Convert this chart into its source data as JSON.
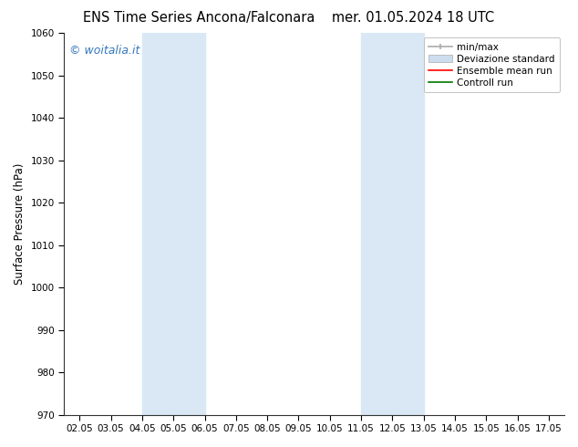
{
  "title_left": "ENS Time Series Ancona/Falconara",
  "title_right": "mer. 01.05.2024 18 UTC",
  "ylabel": "Surface Pressure (hPa)",
  "ylim": [
    970,
    1060
  ],
  "yticks": [
    970,
    980,
    990,
    1000,
    1010,
    1020,
    1030,
    1040,
    1050,
    1060
  ],
  "xtick_labels": [
    "02.05",
    "03.05",
    "04.05",
    "05.05",
    "06.05",
    "07.05",
    "08.05",
    "09.05",
    "10.05",
    "11.05",
    "12.05",
    "13.05",
    "14.05",
    "15.05",
    "16.05",
    "17.05"
  ],
  "xtick_positions": [
    0,
    1,
    2,
    3,
    4,
    5,
    6,
    7,
    8,
    9,
    10,
    11,
    12,
    13,
    14,
    15
  ],
  "shaded_regions": [
    {
      "xstart": 2,
      "xend": 4,
      "color": "#dae8f5"
    },
    {
      "xstart": 9,
      "xend": 11,
      "color": "#dae8f5"
    }
  ],
  "background_color": "#ffffff",
  "plot_bg_color": "#ffffff",
  "watermark_text": "© woitalia.it",
  "watermark_color": "#3377bb",
  "legend_entries": [
    {
      "label": "min/max",
      "color": "#aaaaaa",
      "lw": 1.5
    },
    {
      "label": "Deviazione standard",
      "color": "#ccddee",
      "lw": 8
    },
    {
      "label": "Ensemble mean run",
      "color": "#ff0000",
      "lw": 1.5
    },
    {
      "label": "Controll run",
      "color": "#007700",
      "lw": 1.5
    }
  ],
  "title_fontsize": 10.5,
  "tick_fontsize": 7.5,
  "ylabel_fontsize": 8.5,
  "watermark_fontsize": 9,
  "legend_fontsize": 7.5,
  "figsize": [
    6.34,
    4.9
  ],
  "dpi": 100
}
